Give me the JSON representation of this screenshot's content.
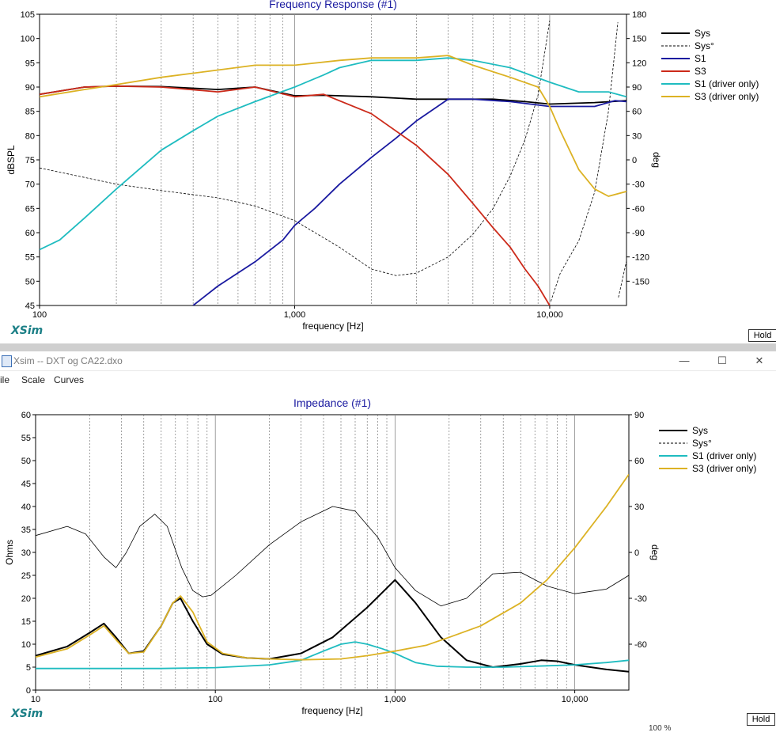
{
  "window": {
    "title": "Xsim -- DXT og CA22.dxo",
    "minimize_glyph": "—",
    "maximize_glyph": "☐",
    "close_glyph": "✕"
  },
  "menu": [
    "ile",
    "Scale",
    "Curves"
  ],
  "brand": "XSim",
  "hold_label": "Hold",
  "status_zoom": "100 %",
  "colors": {
    "black": "#000000",
    "blue": "#1a1aa0",
    "red": "#cc2a1a",
    "cyan": "#1fbcc0",
    "yellow": "#dcb224",
    "title": "#1a1aa0",
    "grid": "#555555"
  },
  "chart_data": [
    {
      "type": "line",
      "title": "Frequency Response (#1)",
      "xlabel": "frequency [Hz]",
      "ylabel": "dBSPL",
      "y2label": "deg",
      "x_scale": "log",
      "xlim": [
        100,
        20000
      ],
      "ylim": [
        45,
        105
      ],
      "y2lim": [
        -180,
        180
      ],
      "xticks": [
        100,
        1000,
        10000
      ],
      "xtick_labels": [
        "100",
        "1,000",
        "10,000"
      ],
      "yticks": [
        45,
        50,
        55,
        60,
        65,
        70,
        75,
        80,
        85,
        90,
        95,
        100,
        105
      ],
      "y2ticks": [
        -150,
        -120,
        -90,
        -60,
        -30,
        0,
        30,
        60,
        90,
        120,
        150,
        180
      ],
      "grid": true,
      "legend": "right",
      "series": [
        {
          "name": "Sys",
          "axis": "left",
          "color": "#000000",
          "width": 1.8,
          "x": [
            100,
            150,
            200,
            300,
            500,
            700,
            1000,
            1300,
            2000,
            3000,
            4000,
            6000,
            8000,
            10000,
            15000,
            20000
          ],
          "y": [
            88.5,
            90,
            90.2,
            90.1,
            89.5,
            90,
            88.2,
            88.3,
            88,
            87.5,
            87.5,
            87.5,
            87,
            86.5,
            86.8,
            87.2
          ]
        },
        {
          "name": "Sys°",
          "axis": "right",
          "color": "#000000",
          "width": 0.8,
          "dash": "3,2",
          "x": [
            100,
            200,
            300,
            500,
            700,
            1000,
            1500,
            2000,
            2500,
            3000,
            4000,
            5000,
            6000,
            7000,
            8000,
            9000,
            10000,
            10100,
            11000,
            13000,
            15000,
            17000,
            18500,
            18600,
            20000
          ],
          "y": [
            -10,
            -30,
            -38,
            -47,
            -57,
            -75,
            -108,
            -135,
            -143,
            -140,
            -120,
            -92,
            -60,
            -20,
            25,
            80,
            172,
            -175,
            -140,
            -100,
            -40,
            60,
            170,
            -170,
            -125
          ]
        },
        {
          "name": "S1",
          "axis": "left",
          "color": "#1a1aa0",
          "width": 1.8,
          "x": [
            400,
            500,
            700,
            900,
            1000,
            1200,
            1500,
            2000,
            2500,
            3000,
            4000,
            5000,
            7000,
            10000,
            15000,
            18000,
            20000
          ],
          "y": [
            45,
            49,
            54,
            58.5,
            61.5,
            65,
            70,
            75.5,
            79.5,
            83,
            87.5,
            87.5,
            87,
            86,
            86,
            87.2,
            87
          ]
        },
        {
          "name": "S3",
          "axis": "left",
          "color": "#cc2a1a",
          "width": 1.8,
          "x": [
            100,
            150,
            200,
            300,
            500,
            700,
            1000,
            1300,
            2000,
            3000,
            4000,
            5000,
            6000,
            7000,
            8000,
            9000,
            10000
          ],
          "y": [
            88.5,
            90,
            90.2,
            90,
            89,
            90,
            88,
            88.5,
            84.5,
            78,
            72,
            66,
            61,
            57,
            52.5,
            49,
            45
          ]
        },
        {
          "name": "S1 (driver only)",
          "axis": "left",
          "color": "#1fbcc0",
          "width": 1.8,
          "x": [
            100,
            120,
            150,
            200,
            300,
            400,
            500,
            700,
            1000,
            1300,
            1500,
            2000,
            3000,
            4000,
            5000,
            7000,
            10000,
            13000,
            17000,
            20000
          ],
          "y": [
            56.5,
            58.5,
            63,
            69,
            77,
            81,
            84,
            87,
            90,
            92.5,
            94,
            95.5,
            95.5,
            96,
            95.5,
            94,
            91,
            89,
            89,
            88
          ]
        },
        {
          "name": "S3 (driver only)",
          "axis": "left",
          "color": "#dcb224",
          "width": 1.8,
          "x": [
            100,
            150,
            200,
            300,
            500,
            700,
            1000,
            1500,
            2000,
            3000,
            4000,
            5000,
            7000,
            9000,
            10000,
            11000,
            13000,
            15000,
            17000,
            20000
          ],
          "y": [
            88,
            89.5,
            90.5,
            92,
            93.5,
            94.5,
            94.5,
            95.5,
            96,
            96,
            96.5,
            94.5,
            92,
            90,
            86,
            81,
            73,
            69,
            67.5,
            68.5
          ]
        }
      ]
    },
    {
      "type": "line",
      "title": "Impedance (#1)",
      "xlabel": "frequency [Hz]",
      "ylabel": "Ohms",
      "y2label": "deg",
      "x_scale": "log",
      "xlim": [
        10,
        20000
      ],
      "ylim": [
        0,
        60
      ],
      "y2lim": [
        -90,
        90
      ],
      "xticks": [
        10,
        100,
        1000,
        10000
      ],
      "xtick_labels": [
        "10",
        "100",
        "1,000",
        "10,000"
      ],
      "yticks": [
        0,
        5,
        10,
        15,
        20,
        25,
        30,
        35,
        40,
        45,
        50,
        55,
        60
      ],
      "y2ticks": [
        -60,
        -30,
        0,
        30,
        60,
        90
      ],
      "grid": true,
      "legend": "right",
      "series": [
        {
          "name": "Sys",
          "axis": "left",
          "color": "#000000",
          "width": 2,
          "x": [
            10,
            15,
            20,
            24,
            28,
            33,
            40,
            50,
            58,
            64,
            75,
            90,
            110,
            150,
            200,
            300,
            450,
            700,
            1000,
            1300,
            1800,
            2500,
            3500,
            5000,
            6500,
            8000,
            10000,
            15000,
            20000
          ],
          "y": [
            7.5,
            9.5,
            12.5,
            14.5,
            11.5,
            8,
            8.5,
            14,
            19,
            20,
            15,
            10,
            7.8,
            7,
            6.8,
            8,
            11.5,
            18,
            24,
            19,
            11.5,
            6.5,
            5,
            5.7,
            6.5,
            6.3,
            5.5,
            4.5,
            4
          ]
        },
        {
          "name": "Sys°",
          "axis": "right",
          "color": "#000000",
          "width": 0.8,
          "x": [
            10,
            15,
            19,
            24,
            28,
            32,
            38,
            46,
            54,
            65,
            75,
            85,
            95,
            130,
            200,
            300,
            450,
            600,
            800,
            1000,
            1300,
            1800,
            2500,
            3500,
            5000,
            7000,
            10000,
            15000,
            20000
          ],
          "y": [
            11,
            17,
            12,
            -3,
            -10,
            0,
            17,
            25,
            17,
            -10,
            -25,
            -29,
            -28,
            -15,
            5,
            20,
            30,
            27,
            10,
            -10,
            -25,
            -35,
            -30,
            -14,
            -13,
            -22,
            -27,
            -24,
            -15
          ]
        },
        {
          "name": "S1 (driver only)",
          "axis": "left",
          "color": "#1fbcc0",
          "width": 1.8,
          "x": [
            10,
            50,
            100,
            200,
            300,
            400,
            500,
            600,
            700,
            850,
            1000,
            1300,
            1700,
            2500,
            4000,
            6000,
            10000,
            15000,
            20000
          ],
          "y": [
            4.7,
            4.7,
            4.9,
            5.5,
            6.5,
            8.5,
            10,
            10.5,
            10,
            9,
            8,
            6,
            5.2,
            5,
            5,
            5.2,
            5.5,
            6,
            6.5
          ]
        },
        {
          "name": "S3 (driver only)",
          "axis": "left",
          "color": "#dcb224",
          "width": 1.8,
          "x": [
            10,
            15,
            20,
            24,
            28,
            33,
            40,
            50,
            58,
            64,
            75,
            90,
            110,
            150,
            200,
            300,
            500,
            700,
            1000,
            1500,
            2000,
            3000,
            5000,
            7000,
            10000,
            15000,
            20000
          ],
          "y": [
            7.2,
            9,
            12,
            14,
            11,
            8,
            8.3,
            14,
            19,
            20.5,
            17,
            10.5,
            8,
            7,
            6.8,
            6.6,
            6.8,
            7.5,
            8.5,
            9.8,
            11.5,
            14,
            19,
            24,
            31,
            40,
            47
          ]
        }
      ]
    }
  ]
}
